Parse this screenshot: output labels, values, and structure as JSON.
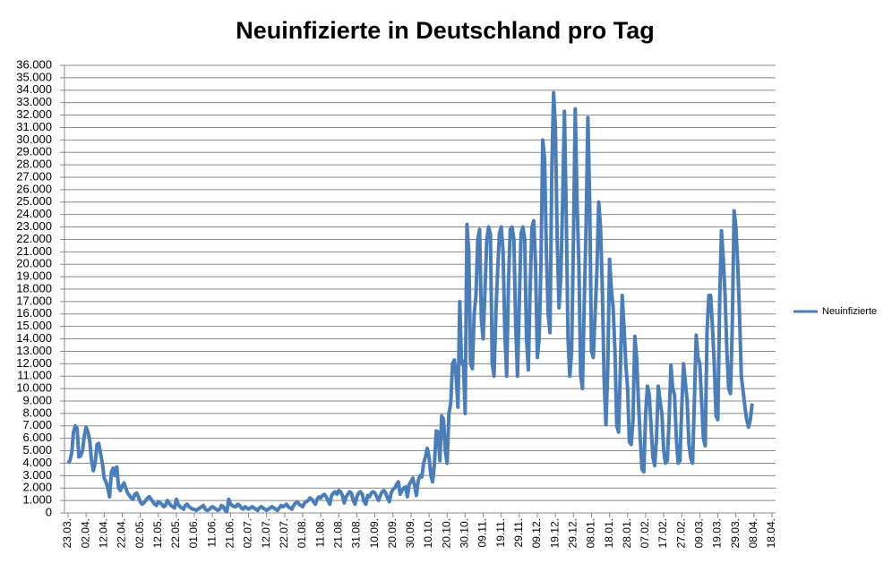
{
  "chart_data": {
    "type": "line",
    "title": "Neuinfizierte in Deutschland pro Tag",
    "categories": [
      "23.03.",
      null,
      null,
      null,
      null,
      null,
      null,
      null,
      null,
      null,
      "02.04.",
      null,
      null,
      null,
      null,
      null,
      null,
      null,
      null,
      null,
      "12.04.",
      null,
      null,
      null,
      null,
      null,
      null,
      null,
      null,
      null,
      "22.04.",
      null,
      null,
      null,
      null,
      null,
      null,
      null,
      null,
      null,
      "02.05.",
      null,
      null,
      null,
      null,
      null,
      null,
      null,
      null,
      null,
      "12.05.",
      null,
      null,
      null,
      null,
      null,
      null,
      null,
      null,
      null,
      "22.05.",
      null,
      null,
      null,
      null,
      null,
      null,
      null,
      null,
      null,
      "01.06.",
      null,
      null,
      null,
      null,
      null,
      null,
      null,
      null,
      null,
      "11.06.",
      null,
      null,
      null,
      null,
      null,
      null,
      null,
      null,
      null,
      "21.06.",
      null,
      null,
      null,
      null,
      null,
      null,
      null,
      null,
      null,
      "02.07.",
      null,
      null,
      null,
      null,
      null,
      null,
      null,
      null,
      null,
      "12.07.",
      null,
      null,
      null,
      null,
      null,
      null,
      null,
      null,
      null,
      "22.07.",
      null,
      null,
      null,
      null,
      null,
      null,
      null,
      null,
      null,
      "01.08.",
      null,
      null,
      null,
      null,
      null,
      null,
      null,
      null,
      null,
      "11.08.",
      null,
      null,
      null,
      null,
      null,
      null,
      null,
      null,
      null,
      "21.08.",
      null,
      null,
      null,
      null,
      null,
      null,
      null,
      null,
      null,
      "31.08.",
      null,
      null,
      null,
      null,
      null,
      null,
      null,
      null,
      null,
      "10.09.",
      null,
      null,
      null,
      null,
      null,
      null,
      null,
      null,
      null,
      "20.09.",
      null,
      null,
      null,
      null,
      null,
      null,
      null,
      null,
      null,
      "30.09.",
      null,
      null,
      null,
      null,
      null,
      null,
      null,
      null,
      null,
      "10.10.",
      null,
      null,
      null,
      null,
      null,
      null,
      null,
      null,
      null,
      "20.10.",
      null,
      null,
      null,
      null,
      null,
      null,
      null,
      null,
      null,
      "30.10.",
      null,
      null,
      null,
      null,
      null,
      null,
      null,
      null,
      null,
      "09.11.",
      null,
      null,
      null,
      null,
      null,
      null,
      null,
      null,
      null,
      "19.11.",
      null,
      null,
      null,
      null,
      null,
      null,
      null,
      null,
      null,
      "29.11.",
      null,
      null,
      null,
      null,
      null,
      null,
      null,
      null,
      null,
      "09.12.",
      null,
      null,
      null,
      null,
      null,
      null,
      null,
      null,
      null,
      "19.12.",
      null,
      null,
      null,
      null,
      null,
      null,
      null,
      null,
      null,
      "29.12.",
      null,
      null,
      null,
      null,
      null,
      null,
      null,
      null,
      null,
      "08.01.",
      null,
      null,
      null,
      null,
      null,
      null,
      null,
      null,
      null,
      "18.01.",
      null,
      null,
      null,
      null,
      null,
      null,
      null,
      null,
      null,
      "28.01.",
      null,
      null,
      null,
      null,
      null,
      null,
      null,
      null,
      null,
      "07.02.",
      null,
      null,
      null,
      null,
      null,
      null,
      null,
      null,
      null,
      "17.02.",
      null,
      null,
      null,
      null,
      null,
      null,
      null,
      null,
      null,
      "27.02.",
      null,
      null,
      null,
      null,
      null,
      null,
      null,
      null,
      null,
      "09.03.",
      null,
      null,
      null,
      null,
      null,
      null,
      null,
      null,
      null,
      "19.03.",
      null,
      null,
      null,
      null,
      null,
      null,
      null,
      null,
      null,
      "29.03.",
      null,
      null,
      null,
      null,
      null,
      null,
      null,
      null,
      null,
      "08.04.",
      null,
      null,
      null,
      null,
      null,
      null,
      null,
      null,
      null,
      "18.04."
    ],
    "series": [
      {
        "name": "Neuinfizierte",
        "color": "#4a7ebb",
        "values": [
          4000,
          4200,
          4800,
          6500,
          7000,
          6800,
          4500,
          4600,
          5000,
          6200,
          6900,
          6500,
          5800,
          4200,
          3400,
          4000,
          5500,
          5600,
          4800,
          4000,
          2800,
          2500,
          2000,
          1300,
          3300,
          3600,
          3000,
          3700,
          2000,
          1800,
          2200,
          2400,
          2000,
          1600,
          1400,
          1200,
          1100,
          1500,
          1600,
          1300,
          900,
          700,
          800,
          1000,
          1200,
          1300,
          1100,
          900,
          700,
          600,
          900,
          800,
          700,
          500,
          600,
          1000,
          800,
          600,
          500,
          400,
          1100,
          700,
          500,
          400,
          300,
          600,
          700,
          500,
          400,
          300,
          300,
          200,
          300,
          400,
          500,
          600,
          300,
          200,
          250,
          400,
          500,
          400,
          300,
          200,
          300,
          600,
          500,
          200,
          100,
          1100,
          700,
          600,
          500,
          500,
          700,
          600,
          400,
          300,
          500,
          400,
          300,
          400,
          500,
          400,
          300,
          200,
          400,
          500,
          400,
          300,
          200,
          300,
          400,
          500,
          400,
          300,
          200,
          400,
          600,
          500,
          600,
          700,
          500,
          400,
          300,
          600,
          800,
          900,
          700,
          600,
          500,
          800,
          900,
          1000,
          1200,
          1100,
          900,
          700,
          1100,
          1300,
          1200,
          1400,
          1500,
          1300,
          1000,
          700,
          1400,
          1600,
          1700,
          1500,
          1800,
          1700,
          1400,
          800,
          1300,
          1500,
          1700,
          1600,
          1000,
          700,
          1300,
          1600,
          1700,
          1500,
          900,
          700,
          1400,
          1300,
          1600,
          1700,
          1600,
          1300,
          1000,
          1400,
          1700,
          1800,
          1600,
          1200,
          900,
          1600,
          1900,
          2000,
          2300,
          2500,
          1500,
          1800,
          2000,
          2100,
          1300,
          2300,
          2500,
          2800,
          2200,
          1400,
          2600,
          3000,
          2900,
          4000,
          4500,
          5200,
          4500,
          3000,
          2500,
          4000,
          6600,
          6500,
          4200,
          7800,
          7500,
          5000,
          4000,
          8000,
          8800,
          12000,
          12300,
          11000,
          8500,
          17000,
          12000,
          12200,
          8000,
          23200,
          21000,
          12000,
          11600,
          16000,
          17500,
          22000,
          22800,
          15500,
          14000,
          18000,
          22000,
          23000,
          22400,
          12000,
          11000,
          16000,
          19500,
          22500,
          23000,
          21000,
          14500,
          11000,
          18500,
          22800,
          23000,
          22000,
          15000,
          11000,
          17000,
          22500,
          23000,
          22000,
          14000,
          11500,
          18000,
          23000,
          23500,
          20000,
          12500,
          14000,
          20000,
          30000,
          28500,
          21000,
          16000,
          14500,
          27500,
          33800,
          31000,
          22000,
          16500,
          19000,
          25000,
          32300,
          24000,
          14000,
          11000,
          13000,
          22000,
          32500,
          25000,
          20000,
          11000,
          10000,
          17000,
          23000,
          31800,
          25000,
          13000,
          12500,
          16000,
          19500,
          25000,
          23000,
          18000,
          10700,
          7100,
          11500,
          20400,
          18000,
          16500,
          13000,
          7000,
          6500,
          11500,
          17500,
          15000,
          12000,
          10000,
          5700,
          5500,
          7500,
          14200,
          12500,
          9000,
          6000,
          3500,
          3300,
          8000,
          10200,
          9500,
          7000,
          4500,
          3800,
          6000,
          10200,
          9000,
          8000,
          5000,
          4000,
          4200,
          7500,
          11900,
          10000,
          9500,
          6000,
          4000,
          4200,
          8500,
          12000,
          10500,
          9000,
          5500,
          4400,
          4000,
          9000,
          14300,
          12500,
          12000,
          9000,
          6000,
          5400,
          14500,
          17500,
          17500,
          15000,
          12000,
          7800,
          7500,
          17000,
          22700,
          20500,
          17500,
          13000,
          10000,
          9600,
          15000,
          24300,
          23000,
          20000,
          16000,
          11000,
          9800,
          8500,
          7500,
          6900,
          7500,
          8800,
          null,
          null,
          null,
          null,
          null,
          null,
          null,
          null,
          null,
          null,
          null
        ]
      }
    ],
    "ylim": [
      0,
      36000
    ],
    "yticks": [
      0,
      {
        "value": 1000,
        "label": "1.000"
      },
      {
        "value": 2000,
        "label": "2.000"
      },
      {
        "value": 3000,
        "label": "3.000"
      },
      {
        "value": 4000,
        "label": "4.000"
      },
      {
        "value": 5000,
        "label": "5.000"
      },
      {
        "value": 6000,
        "label": "6.000"
      },
      {
        "value": 7000,
        "label": "7.000"
      },
      {
        "value": 8000,
        "label": "8.000"
      },
      {
        "value": 9000,
        "label": "9.000"
      },
      {
        "value": 10000,
        "label": "10.000"
      },
      {
        "value": 11000,
        "label": "11.000"
      },
      {
        "value": 12000,
        "label": "12.000"
      },
      {
        "value": 13000,
        "label": "13.000"
      },
      {
        "value": 14000,
        "label": "14.000"
      },
      {
        "value": 15000,
        "label": "15.000"
      },
      {
        "value": 16000,
        "label": "16.000"
      },
      {
        "value": 17000,
        "label": "17.000"
      },
      {
        "value": 18000,
        "label": "18.000"
      },
      {
        "value": 19000,
        "label": "19.000"
      },
      {
        "value": 20000,
        "label": "20.000"
      },
      {
        "value": 21000,
        "label": "21.000"
      },
      {
        "value": 22000,
        "label": "22.000"
      },
      {
        "value": 23000,
        "label": "23.000"
      },
      {
        "value": 24000,
        "label": "24.000"
      },
      {
        "value": 25000,
        "label": "25.000"
      },
      {
        "value": 26000,
        "label": "26.000"
      },
      {
        "value": 27000,
        "label": "27.000"
      },
      {
        "value": 28000,
        "label": "28.000"
      },
      {
        "value": 29000,
        "label": "29.000"
      },
      {
        "value": 30000,
        "label": "30.000"
      },
      {
        "value": 31000,
        "label": "31.000"
      },
      {
        "value": 32000,
        "label": "32.000"
      },
      {
        "value": 33000,
        "label": "33.000"
      },
      {
        "value": 34000,
        "label": "34.000"
      },
      {
        "value": 35000,
        "label": "35.000"
      },
      {
        "value": 36000,
        "label": "36.000"
      }
    ],
    "grid": true,
    "legend": "right"
  }
}
